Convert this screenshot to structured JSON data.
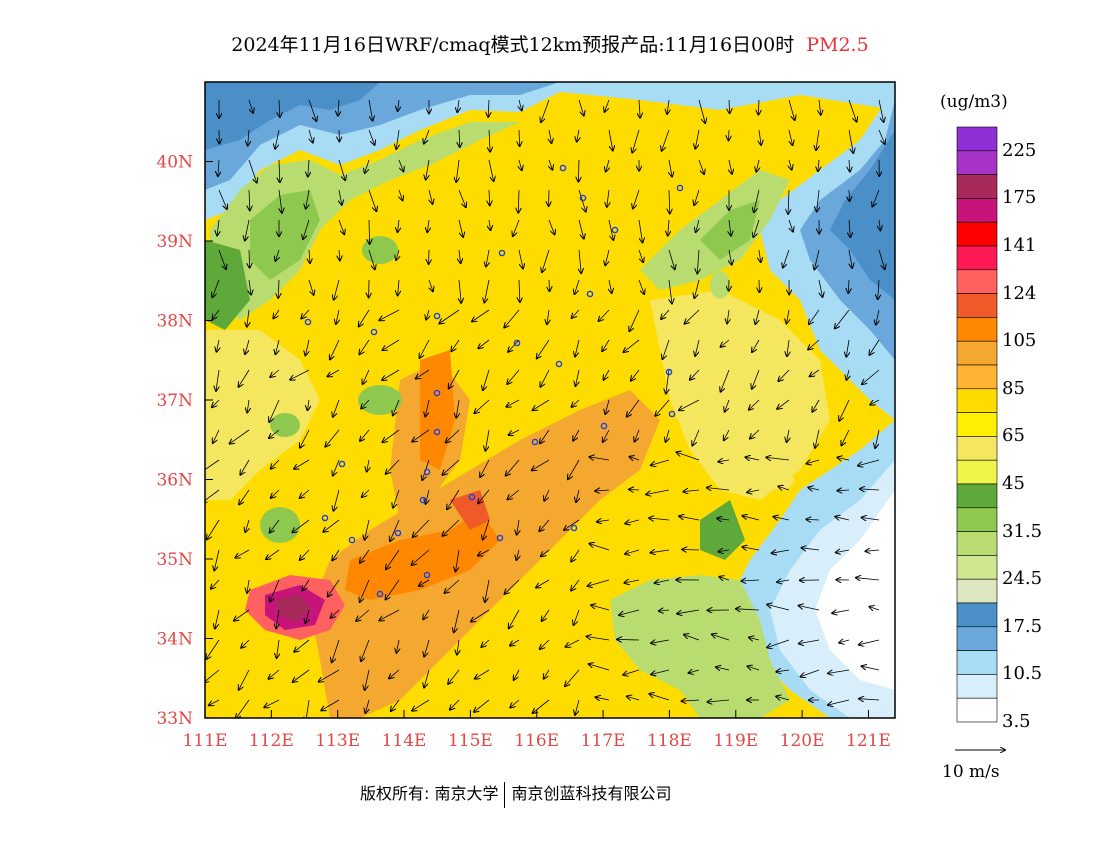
{
  "title": {
    "main": "2024年11月16日WRF/cmaq模式12km预报产品:11月16日00时",
    "pollutant": "PM2.5"
  },
  "axes": {
    "lat_labels": [
      "33N",
      "34N",
      "35N",
      "36N",
      "37N",
      "38N",
      "39N",
      "40N"
    ],
    "lon_labels": [
      "111E",
      "112E",
      "113E",
      "114E",
      "115E",
      "116E",
      "117E",
      "118E",
      "119E",
      "120E",
      "121E"
    ],
    "lon_range": [
      111,
      121.4
    ],
    "lat_range": [
      33,
      41
    ]
  },
  "legend": {
    "units": "(ug/m3)",
    "labels": [
      "225",
      "175",
      "141",
      "124",
      "105",
      "85",
      "65",
      "45",
      "31.5",
      "24.5",
      "17.5",
      "10.5",
      "3.5"
    ],
    "colors": [
      "#8f2fd6",
      "#a632c8",
      "#a82a5a",
      "#c7147a",
      "#ff0000",
      "#ff1a55",
      "#ff6060",
      "#f05a28",
      "#ff8800",
      "#f4a830",
      "#ffb433",
      "#ffdc00",
      "#ffef00",
      "#f5e660",
      "#edf44a",
      "#5fa83a",
      "#8fc84f",
      "#b8dc70",
      "#cfe890",
      "#dde8c0",
      "#4a8fc8",
      "#6aa8dc",
      "#a8dcf4",
      "#d8eefa",
      "#ffffff"
    ]
  },
  "wind_reference": {
    "label": "10 m/s"
  },
  "copyright": {
    "left": "版权所有: 南京大学",
    "right": "南京创蓝科技有限公司"
  },
  "colors": {
    "label_red": "#e24646"
  }
}
